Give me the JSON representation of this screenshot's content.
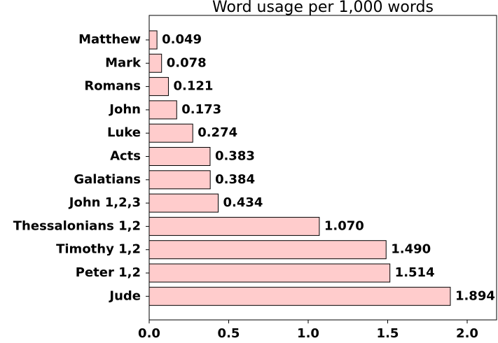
{
  "chart_data": {
    "type": "barh",
    "title": "Word usage per 1,000 words",
    "categories": [
      "Matthew",
      "Mark",
      "Romans",
      "John",
      "Luke",
      "Acts",
      "Galatians",
      "John 1,2,3",
      "Thessalonians 1,2",
      "Timothy 1,2",
      "Peter 1,2",
      "Jude"
    ],
    "values": [
      0.049,
      0.078,
      0.121,
      0.173,
      0.274,
      0.383,
      0.384,
      0.434,
      1.07,
      1.49,
      1.514,
      1.894
    ],
    "value_labels": [
      "0.049",
      "0.078",
      "0.121",
      "0.173",
      "0.274",
      "0.383",
      "0.384",
      "0.434",
      "1.070",
      "1.490",
      "1.514",
      "1.894"
    ],
    "color": "#ffcccc",
    "edgecolor": "#000000",
    "xlim": [
      0,
      2.185
    ],
    "xticks": [
      {
        "value": 0,
        "label": "0.0"
      },
      {
        "value": 0.5,
        "label": "0.5"
      },
      {
        "value": 1,
        "label": "1.0"
      },
      {
        "value": 1.5,
        "label": "1.5"
      },
      {
        "value": 2,
        "label": "2.0"
      }
    ]
  }
}
